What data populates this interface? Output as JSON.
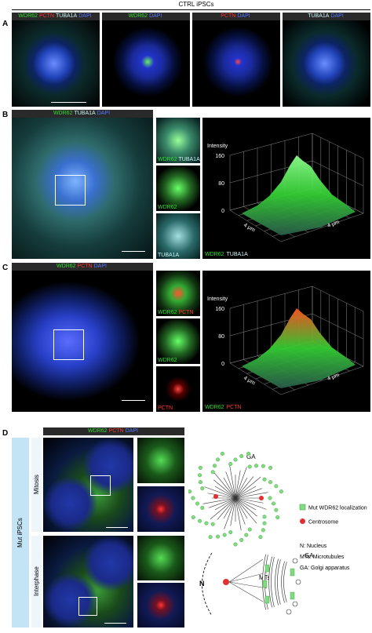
{
  "header": {
    "title": "CTRL iPSCs"
  },
  "panel_a": {
    "label": "A",
    "captions": [
      [
        {
          "text": "WDR62",
          "color": "#33dd33"
        },
        {
          "text": "PCTN",
          "color": "#ff3333"
        },
        {
          "text": "TUBA1A",
          "color": "#c8f4f4"
        },
        {
          "text": "DAPI",
          "color": "#5577ff"
        }
      ],
      [
        {
          "text": "WDR62",
          "color": "#33dd33"
        },
        {
          "text": "DAPI",
          "color": "#5577ff"
        }
      ],
      [
        {
          "text": "PCTN",
          "color": "#ff3333"
        },
        {
          "text": "DAPI",
          "color": "#5577ff"
        }
      ],
      [
        {
          "text": "TUBA1A",
          "color": "#c8f4f4"
        },
        {
          "text": "DAPI",
          "color": "#5577ff"
        }
      ]
    ]
  },
  "panel_b": {
    "label": "B",
    "caption": [
      {
        "text": "WDR62",
        "color": "#33dd33"
      },
      {
        "text": "TUBA1A",
        "color": "#c8f4f4"
      },
      {
        "text": "DAPI",
        "color": "#5577ff"
      }
    ],
    "insets": [
      [
        {
          "text": "WDR62",
          "color": "#33dd33"
        },
        {
          "text": "TUBA1A",
          "color": "#c8f4f4"
        }
      ],
      [
        {
          "text": "WDR62",
          "color": "#33dd33"
        }
      ],
      [
        {
          "text": "TUBA1A",
          "color": "#c8f4f4"
        }
      ]
    ],
    "plot": {
      "axis_title": "Intensity",
      "ticks": [
        160,
        80,
        0
      ],
      "x_label": "4 μm",
      "y_label": "4 μm",
      "caption": [
        {
          "text": "WDR62",
          "color": "#33dd33"
        },
        {
          "text": "TUBA1A",
          "color": "#c8f4f4"
        }
      ]
    }
  },
  "panel_c": {
    "label": "C",
    "caption": [
      {
        "text": "WDR62",
        "color": "#33dd33"
      },
      {
        "text": "PCTN",
        "color": "#ff3333"
      },
      {
        "text": "DAPI",
        "color": "#5577ff"
      }
    ],
    "insets": [
      [
        {
          "text": "WDR62",
          "color": "#33dd33"
        },
        {
          "text": "PCTN",
          "color": "#ff3333"
        }
      ],
      [
        {
          "text": "WDR62",
          "color": "#33dd33"
        }
      ],
      [
        {
          "text": "PCTN",
          "color": "#ff3333"
        }
      ]
    ],
    "plot": {
      "axis_title": "Intensity",
      "ticks": [
        160,
        80,
        0
      ],
      "x_label": "4 μm",
      "y_label": "4 μm",
      "caption": [
        {
          "text": "WDR62",
          "color": "#33dd33"
        },
        {
          "text": "PCTN",
          "color": "#ff3333"
        }
      ]
    }
  },
  "panel_d": {
    "label": "D",
    "group": "Mut iPSCs",
    "rows": [
      "Mitosis",
      "Interphase"
    ],
    "caption": [
      {
        "text": "WDR62",
        "color": "#33dd33"
      },
      {
        "text": "PCTN",
        "color": "#ff3333"
      },
      {
        "text": "DAPI",
        "color": "#5577ff"
      }
    ],
    "diagram": {
      "ga_top": "GA",
      "ga_bottom": "GA",
      "nucleus": "N",
      "microtubules": "MTs"
    },
    "legend": [
      {
        "text": "Mut WDR62 localization",
        "color": "#7fdc7f"
      },
      {
        "text": "Centrosome",
        "color": "#e03030"
      }
    ],
    "notes": [
      "N: Nucleus",
      "MTs: Microtubules",
      "GA: Golgi apparatus"
    ]
  }
}
